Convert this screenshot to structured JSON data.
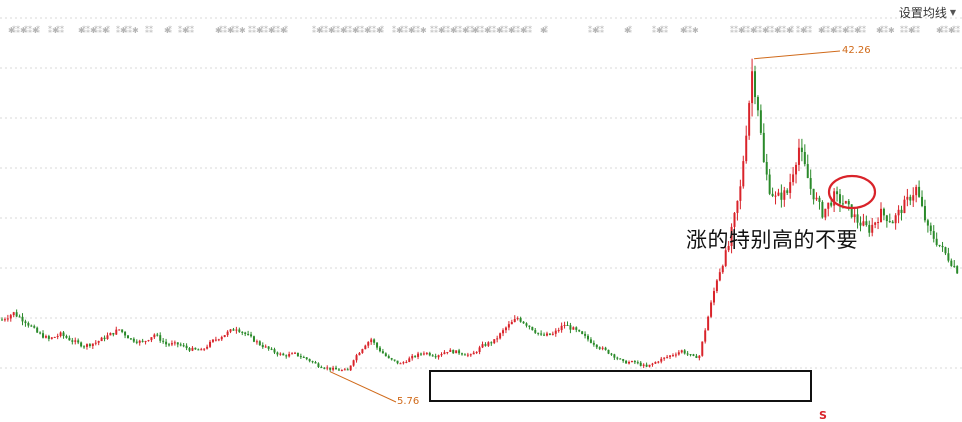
{
  "toolbar": {
    "ma_settings_label": "设置均线",
    "dropdown_icon": "caret-down-icon"
  },
  "annotation": {
    "text": "涨的特别高的不要"
  },
  "price_labels": {
    "high": "42.26",
    "low": "5.76"
  },
  "marker": {
    "text": "S"
  },
  "colors": {
    "up": "#d9232a",
    "down": "#2a8a2a",
    "grid": "#d8d8d8",
    "event_marks": "#b5b5b5",
    "highlight_ellipse": "#d9232a",
    "price_label": "#d06a1a"
  },
  "chart_data": {
    "type": "candlestick",
    "series_shape": [
      [
        0,
        12.0
      ],
      [
        4,
        12.8
      ],
      [
        8,
        11.8
      ],
      [
        12,
        10.4
      ],
      [
        16,
        9.6
      ],
      [
        20,
        10.2
      ],
      [
        24,
        9.4
      ],
      [
        28,
        8.8
      ],
      [
        32,
        9.2
      ],
      [
        36,
        10.0
      ],
      [
        40,
        10.8
      ],
      [
        44,
        9.6
      ],
      [
        48,
        9.2
      ],
      [
        52,
        10.2
      ],
      [
        56,
        9.0
      ],
      [
        60,
        9.0
      ],
      [
        64,
        8.4
      ],
      [
        68,
        8.2
      ],
      [
        72,
        9.4
      ],
      [
        76,
        10.2
      ],
      [
        80,
        11.0
      ],
      [
        84,
        10.0
      ],
      [
        88,
        9.0
      ],
      [
        92,
        8.2
      ],
      [
        96,
        7.6
      ],
      [
        100,
        7.8
      ],
      [
        104,
        7.2
      ],
      [
        108,
        6.4
      ],
      [
        112,
        6.0
      ],
      [
        116,
        5.8
      ],
      [
        118,
        5.76
      ],
      [
        120,
        7.2
      ],
      [
        124,
        9.0
      ],
      [
        126,
        9.6
      ],
      [
        128,
        8.6
      ],
      [
        132,
        7.2
      ],
      [
        136,
        6.6
      ],
      [
        140,
        7.4
      ],
      [
        144,
        8.0
      ],
      [
        148,
        7.6
      ],
      [
        152,
        8.2
      ],
      [
        156,
        8.0
      ],
      [
        160,
        7.6
      ],
      [
        164,
        8.8
      ],
      [
        168,
        9.4
      ],
      [
        172,
        11.0
      ],
      [
        176,
        12.2
      ],
      [
        180,
        11.2
      ],
      [
        184,
        10.0
      ],
      [
        188,
        10.2
      ],
      [
        192,
        11.4
      ],
      [
        196,
        10.6
      ],
      [
        200,
        9.6
      ],
      [
        204,
        8.6
      ],
      [
        208,
        7.8
      ],
      [
        212,
        6.8
      ],
      [
        216,
        6.8
      ],
      [
        220,
        6.2
      ],
      [
        224,
        7.0
      ],
      [
        228,
        7.6
      ],
      [
        232,
        8.2
      ],
      [
        236,
        7.4
      ],
      [
        238,
        7.6
      ],
      [
        240,
        10.8
      ],
      [
        244,
        17.0
      ],
      [
        248,
        21.0
      ],
      [
        252,
        28.0
      ],
      [
        256,
        42.26
      ],
      [
        258,
        38.0
      ],
      [
        260,
        31.0
      ],
      [
        262,
        28.0
      ],
      [
        264,
        26.8
      ],
      [
        268,
        27.5
      ],
      [
        272,
        33.0
      ],
      [
        276,
        28.0
      ],
      [
        280,
        25.0
      ],
      [
        284,
        27.0
      ],
      [
        288,
        26.0
      ],
      [
        292,
        24.0
      ],
      [
        296,
        23.0
      ],
      [
        300,
        25.0
      ],
      [
        304,
        24.0
      ],
      [
        308,
        26.0
      ],
      [
        312,
        28.0
      ],
      [
        316,
        23.0
      ],
      [
        320,
        21.0
      ],
      [
        326,
        18.0
      ]
    ],
    "markers": [
      {
        "label": "S"
      }
    ]
  }
}
